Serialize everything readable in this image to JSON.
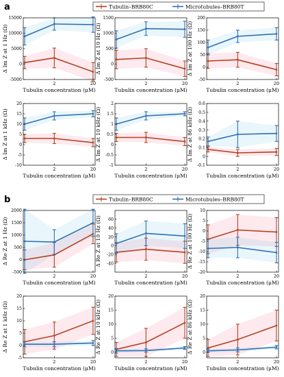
{
  "colors": {
    "tubulin": "#b5401f",
    "microtubules": "#2f6fb3",
    "frame": "#000000"
  },
  "sections": [
    {
      "label": "a",
      "legend": {
        "tubulin": "Tubulin–BRB80C",
        "microtubules": "Microtubules–BRB80T"
      },
      "xlabel": "Tubulin concentration (μM)"
    },
    {
      "label": "b",
      "legend": {
        "tubulin": "Tubulin–BRB80C",
        "microtubules": "Microtubules–BRB80T"
      },
      "xlabel": "Tubulin concentration (μM)"
    }
  ],
  "chart_data": [
    {
      "type": "line",
      "ylabel": "Δ Im Z at 1 Hz (Ω)",
      "xlabel": "Tubulin concentration (μM)",
      "xticks": [
        "2",
        "20"
      ],
      "ylim": [
        -5000,
        15000
      ],
      "yticks": [
        "-5000",
        "0",
        "5000",
        "10000",
        "15000"
      ],
      "series": [
        {
          "name": "Tubulin–BRB80C",
          "x": [
            0,
            2,
            20
          ],
          "y": [
            500,
            2000,
            -2500
          ],
          "err": [
            2000,
            3200,
            3000
          ]
        },
        {
          "name": "Microtubules–BRB80T",
          "x": [
            0,
            2,
            20
          ],
          "y": [
            9000,
            13000,
            12800
          ],
          "err": [
            2800,
            2000,
            2500
          ]
        }
      ]
    },
    {
      "type": "line",
      "ylabel": "Δ Im Z at 10 Hz (Ω)",
      "xlabel": "Tubulin concentration (μM)",
      "xticks": [
        "2",
        "20"
      ],
      "ylim": [
        -500,
        1500
      ],
      "yticks": [
        "-500",
        "0",
        "500",
        "1000",
        "1500"
      ],
      "series": [
        {
          "name": "Tubulin–BRB80C",
          "x": [
            0,
            2,
            20
          ],
          "y": [
            150,
            200,
            -150
          ],
          "err": [
            300,
            300,
            250
          ]
        },
        {
          "name": "Microtubules–BRB80T",
          "x": [
            0,
            2,
            20
          ],
          "y": [
            800,
            1150,
            1130
          ],
          "err": [
            280,
            220,
            260
          ]
        }
      ]
    },
    {
      "type": "line",
      "ylabel": "Δ Im Z at 100 Hz (Ω)",
      "xlabel": "Tubulin concentration (μM)",
      "xticks": [
        "2",
        "20"
      ],
      "ylim": [
        -50,
        200
      ],
      "yticks": [
        "-50",
        "0",
        "50",
        "100",
        "150",
        "200"
      ],
      "series": [
        {
          "name": "Tubulin–BRB80C",
          "x": [
            0,
            2,
            20
          ],
          "y": [
            25,
            30,
            -10
          ],
          "err": [
            30,
            30,
            25
          ]
        },
        {
          "name": "Microtubules–BRB80T",
          "x": [
            0,
            2,
            20
          ],
          "y": [
            80,
            125,
            135
          ],
          "err": [
            30,
            25,
            25
          ]
        }
      ]
    },
    {
      "type": "line",
      "ylabel": "Δ Im Z at 1 kHz (Ω)",
      "xlabel": "Tubulin concentration (μM)",
      "xticks": [
        "2",
        "20"
      ],
      "ylim": [
        -10,
        20
      ],
      "yticks": [
        "-10",
        "-5",
        "0",
        "5",
        "10",
        "15",
        "20"
      ],
      "series": [
        {
          "name": "Tubulin–BRB80C",
          "x": [
            0,
            2,
            20
          ],
          "y": [
            3,
            3,
            1
          ],
          "err": [
            2,
            2.5,
            2
          ]
        },
        {
          "name": "Microtubules–BRB80T",
          "x": [
            0,
            2,
            20
          ],
          "y": [
            10,
            14,
            15
          ],
          "err": [
            3,
            2,
            1.5
          ]
        }
      ]
    },
    {
      "type": "line",
      "ylabel": "Δ Im Z at 10 kHz (Ω)",
      "xlabel": "Tubulin concentration (μM)",
      "xticks": [
        "2",
        "20"
      ],
      "ylim": [
        -1,
        2
      ],
      "yticks": [
        "-1",
        "-0.5",
        "0",
        "0.5",
        "1",
        "1.5",
        "2"
      ],
      "series": [
        {
          "name": "Tubulin–BRB80C",
          "x": [
            0,
            2,
            20
          ],
          "y": [
            0.35,
            0.35,
            0.15
          ],
          "err": [
            0.2,
            0.25,
            0.2
          ]
        },
        {
          "name": "Microtubules–BRB80T",
          "x": [
            0,
            2,
            20
          ],
          "y": [
            1.0,
            1.4,
            1.5
          ],
          "err": [
            0.3,
            0.2,
            0.1
          ]
        }
      ]
    },
    {
      "type": "line",
      "ylabel": "Δ Im Z at 86 kHz (Ω)",
      "xlabel": "Tubulin concentration (μM)",
      "xticks": [
        "2",
        "20"
      ],
      "ylim": [
        -0.1,
        0.6
      ],
      "yticks": [
        "-0.1",
        "0",
        "0.1",
        "0.2",
        "0.3",
        "0.4",
        "0.5",
        "0.6"
      ],
      "series": [
        {
          "name": "Tubulin–BRB80C",
          "x": [
            0,
            2,
            20
          ],
          "y": [
            0.08,
            0.04,
            0.05
          ],
          "err": [
            0.03,
            0.04,
            0.04
          ]
        },
        {
          "name": "Microtubules–BRB80T",
          "x": [
            0,
            2,
            20
          ],
          "y": [
            0.17,
            0.25,
            0.26
          ],
          "err": [
            0.05,
            0.15,
            0.09
          ]
        }
      ]
    },
    {
      "type": "line",
      "ylabel": "Δ Re Z at 1 Hz (Ω)",
      "xlabel": "Tubulin concentration (μM)",
      "xticks": [
        "2",
        "20"
      ],
      "ylim": [
        -500,
        2000
      ],
      "yticks": [
        "-500",
        "0",
        "500",
        "1000",
        "1500",
        "2000"
      ],
      "series": [
        {
          "name": "Tubulin–BRB80C",
          "x": [
            0,
            2,
            20
          ],
          "y": [
            0,
            200,
            1050
          ],
          "err": [
            400,
            500,
            400
          ]
        },
        {
          "name": "Microtubules–BRB80T",
          "x": [
            0,
            2,
            20
          ],
          "y": [
            750,
            720,
            1500
          ],
          "err": [
            1300,
            500,
            550
          ]
        }
      ]
    },
    {
      "type": "line",
      "ylabel": "Δ Re Z at 10 Hz (Ω)",
      "xlabel": "Tubulin concentration (μM)",
      "xticks": [
        "2",
        "20"
      ],
      "ylim": [
        -60,
        80
      ],
      "yticks": [
        "-40",
        "-20",
        "0",
        "20",
        "40",
        "60"
      ],
      "series": [
        {
          "name": "Tubulin–BRB80C",
          "x": [
            0,
            2,
            20
          ],
          "y": [
            -15,
            -8,
            -15
          ],
          "err": [
            22,
            25,
            25
          ]
        },
        {
          "name": "Microtubules–BRB80T",
          "x": [
            0,
            2,
            20
          ],
          "y": [
            5,
            28,
            22
          ],
          "err": [
            22,
            28,
            28
          ]
        }
      ]
    },
    {
      "type": "line",
      "ylabel": "Δ Re Z at 100 Hz (Ω)",
      "xlabel": "Tubulin concentration (μM)",
      "xticks": [
        "2",
        "20"
      ],
      "ylim": [
        -20,
        10
      ],
      "yticks": [
        "-20",
        "-15",
        "-10",
        "-5",
        "0",
        "5",
        "10"
      ],
      "series": [
        {
          "name": "Tubulin–BRB80C",
          "x": [
            0,
            2,
            20
          ],
          "y": [
            -4,
            0.5,
            -0.5
          ],
          "err": [
            7,
            7.5,
            7
          ]
        },
        {
          "name": "Microtubules–BRB80T",
          "x": [
            0,
            2,
            20
          ],
          "y": [
            -8.5,
            -8,
            -10.5
          ],
          "err": [
            4.5,
            5,
            5
          ]
        }
      ]
    },
    {
      "type": "line",
      "ylabel": "Δ Re Z at 1 kHz (Ω)",
      "xlabel": "Tubulin concentration (μM)",
      "xticks": [
        "2",
        "20"
      ],
      "ylim": [
        -5,
        20
      ],
      "yticks": [
        "-5",
        "0",
        "5",
        "10",
        "15",
        "20"
      ],
      "series": [
        {
          "name": "Tubulin–BRB80C",
          "x": [
            0,
            2,
            20
          ],
          "y": [
            1.5,
            4,
            10
          ],
          "err": [
            5,
            5.5,
            5.5
          ]
        },
        {
          "name": "Microtubules–BRB80T",
          "x": [
            0,
            2,
            20
          ],
          "y": [
            0.5,
            0.5,
            1
          ],
          "err": [
            1,
            1,
            1
          ]
        }
      ]
    },
    {
      "type": "line",
      "ylabel": "Δ Re Z at 10 kHz (Ω)",
      "xlabel": "Tubulin concentration (μM)",
      "xticks": [
        "2",
        "20"
      ],
      "ylim": [
        -2,
        20
      ],
      "yticks": [
        "0",
        "5",
        "10",
        "15",
        "20"
      ],
      "series": [
        {
          "name": "Tubulin–BRB80C",
          "x": [
            0,
            2,
            20
          ],
          "y": [
            1,
            3.5,
            10.5
          ],
          "err": [
            2.5,
            5,
            5.5
          ]
        },
        {
          "name": "Microtubules–BRB80T",
          "x": [
            0,
            2,
            20
          ],
          "y": [
            0.5,
            0.6,
            1.5
          ],
          "err": [
            0.8,
            0.6,
            0.5
          ]
        }
      ]
    },
    {
      "type": "line",
      "ylabel": "Δ Re Z at 86 kHz (Ω)",
      "xlabel": "Tubulin concentration (μM)",
      "xticks": [
        "2",
        "20"
      ],
      "ylim": [
        -2,
        20
      ],
      "yticks": [
        "0",
        "5",
        "10",
        "15",
        "20"
      ],
      "series": [
        {
          "name": "Tubulin–BRB80C",
          "x": [
            0,
            2,
            20
          ],
          "y": [
            1.5,
            4.5,
            9.5
          ],
          "err": [
            3,
            5.5,
            5.5
          ]
        },
        {
          "name": "Microtubules–BRB80T",
          "x": [
            0,
            2,
            20
          ],
          "y": [
            0.5,
            0.8,
            1.8
          ],
          "err": [
            0.6,
            0.7,
            0.6
          ]
        }
      ]
    }
  ]
}
